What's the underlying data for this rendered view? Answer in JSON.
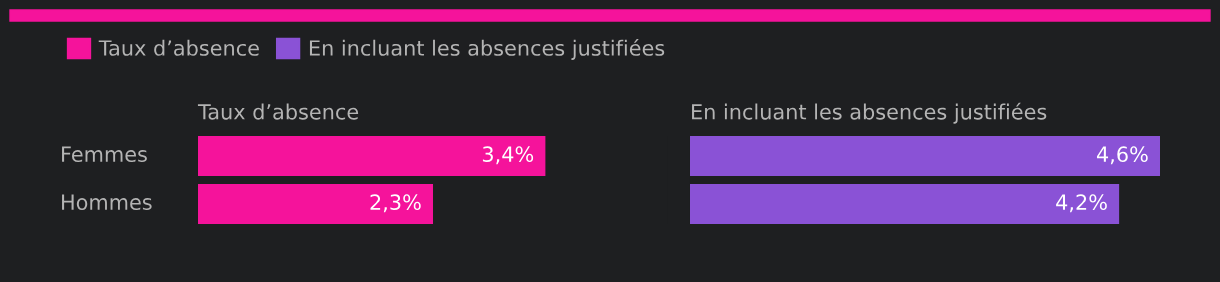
{
  "chart_data": [
    {
      "type": "bar",
      "orientation": "horizontal",
      "title": "Taux d’absence",
      "categories": [
        "Femmes",
        "Hommes"
      ],
      "legend": "top",
      "series": [
        {
          "name": "Taux d’absence",
          "color": "#f5139b",
          "values": [
            3.4,
            2.3
          ],
          "value_labels": [
            "3,4%",
            "2,3%"
          ]
        }
      ]
    },
    {
      "type": "bar",
      "orientation": "horizontal",
      "title": "En incluant les absences justifiées",
      "categories": [
        null,
        null
      ],
      "legend": "top",
      "series": [
        {
          "name": "En incluant les absences justifiées",
          "color": "#8a52d6",
          "values": [
            4.6,
            4.2
          ],
          "value_labels": [
            "4,6%",
            "4,2%"
          ]
        }
      ]
    }
  ]
}
